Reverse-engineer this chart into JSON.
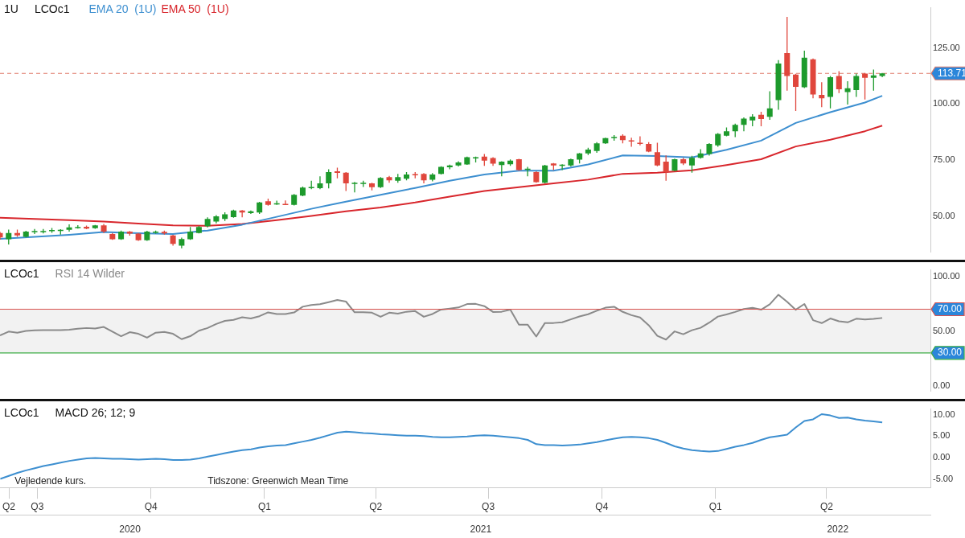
{
  "chart_data": [
    {
      "type": "candlestick",
      "title": "1U",
      "subtitle": "LCOc1",
      "legend": "top",
      "x": [
        "2020-06-01",
        "2020-06-08",
        "2020-06-15",
        "2020-06-22",
        "2020-06-29",
        "2020-07-06",
        "2020-07-13",
        "2020-07-20",
        "2020-07-27",
        "2020-08-03",
        "2020-08-10",
        "2020-08-17",
        "2020-08-24",
        "2020-08-31",
        "2020-09-07",
        "2020-09-14",
        "2020-09-21",
        "2020-09-28",
        "2020-10-05",
        "2020-10-12",
        "2020-10-19",
        "2020-10-26",
        "2020-11-02",
        "2020-11-09",
        "2020-11-16",
        "2020-11-23",
        "2020-11-30",
        "2020-12-07",
        "2020-12-14",
        "2020-12-21",
        "2020-12-28",
        "2021-01-04",
        "2021-01-11",
        "2021-01-18",
        "2021-01-25",
        "2021-02-01",
        "2021-02-08",
        "2021-02-15",
        "2021-02-22",
        "2021-03-01",
        "2021-03-08",
        "2021-03-15",
        "2021-03-22",
        "2021-03-29",
        "2021-04-05",
        "2021-04-12",
        "2021-04-19",
        "2021-04-26",
        "2021-05-03",
        "2021-05-10",
        "2021-05-17",
        "2021-05-24",
        "2021-05-31",
        "2021-06-07",
        "2021-06-14",
        "2021-06-21",
        "2021-06-28",
        "2021-07-05",
        "2021-07-12",
        "2021-07-19",
        "2021-07-26",
        "2021-08-02",
        "2021-08-09",
        "2021-08-16",
        "2021-08-23",
        "2021-08-30",
        "2021-09-06",
        "2021-09-13",
        "2021-09-20",
        "2021-09-27",
        "2021-10-04",
        "2021-10-11",
        "2021-10-18",
        "2021-10-25",
        "2021-11-01",
        "2021-11-08",
        "2021-11-15",
        "2021-11-22",
        "2021-11-29",
        "2021-12-06",
        "2021-12-13",
        "2021-12-20",
        "2021-12-27",
        "2022-01-03",
        "2022-01-10",
        "2022-01-17",
        "2022-01-24",
        "2022-01-31",
        "2022-02-07",
        "2022-02-14",
        "2022-02-21",
        "2022-02-28",
        "2022-03-07",
        "2022-03-14",
        "2022-03-21",
        "2022-03-28",
        "2022-04-04",
        "2022-04-11",
        "2022-04-18",
        "2022-04-25",
        "2022-05-02",
        "2022-05-09",
        "2022-05-16"
      ],
      "ohlc": [
        [
          42.5,
          43,
          39.5,
          40.5
        ],
        [
          39.7,
          44,
          37.4,
          42.5
        ],
        [
          42.5,
          44,
          40.8,
          41.4
        ],
        [
          40.8,
          43.5,
          40.5,
          43.1
        ],
        [
          43,
          44.3,
          42,
          43.4
        ],
        [
          43.1,
          44.3,
          42.3,
          43.4
        ],
        [
          43.4,
          44.7,
          42.6,
          43.8
        ],
        [
          43.6,
          44.2,
          41.8,
          43.9
        ],
        [
          43.9,
          46.3,
          43.1,
          45
        ],
        [
          44.9,
          46,
          44.5,
          45.2
        ],
        [
          45.3,
          45.8,
          44.2,
          44.5
        ],
        [
          44.6,
          46.1,
          44.4,
          45.9
        ],
        [
          45.9,
          46.5,
          42.5,
          43.1
        ],
        [
          42,
          42.5,
          39.4,
          39.7
        ],
        [
          39.7,
          43.6,
          39.4,
          43.1
        ],
        [
          43.1,
          43.4,
          41.3,
          42.2
        ],
        [
          42.2,
          42.5,
          39,
          39.3
        ],
        [
          39.3,
          43.5,
          39,
          43.1
        ],
        [
          42.8,
          43.6,
          42.2,
          43.1
        ],
        [
          43,
          43.6,
          41.8,
          42.3
        ],
        [
          41.4,
          41.7,
          36.8,
          37.6
        ],
        [
          36.8,
          40.4,
          35.7,
          39.8
        ],
        [
          39.7,
          45.2,
          39.4,
          43.1
        ],
        [
          42.5,
          45.6,
          42.3,
          45.2
        ],
        [
          45.5,
          49.5,
          45,
          48.8
        ],
        [
          47.6,
          50.5,
          46.8,
          49.9
        ],
        [
          48.8,
          51.7,
          47.9,
          50.8
        ],
        [
          49.6,
          52.9,
          49.3,
          52.5
        ],
        [
          52.5,
          52.7,
          49.5,
          51.6
        ],
        [
          51.4,
          52.5,
          51,
          52.2
        ],
        [
          51.6,
          56.4,
          51,
          56.1
        ],
        [
          56.7,
          57.8,
          54.7,
          55
        ],
        [
          55.4,
          56.9,
          55,
          55.8
        ],
        [
          55.5,
          57,
          55,
          55.3
        ],
        [
          55,
          59.9,
          54.8,
          59.5
        ],
        [
          59.2,
          63.2,
          58.9,
          62.8
        ],
        [
          62.7,
          65.8,
          62,
          63
        ],
        [
          62.5,
          67.8,
          62,
          64.6
        ],
        [
          64.6,
          70.9,
          62.4,
          69.7
        ],
        [
          70,
          71.6,
          66.9,
          69.3
        ],
        [
          69.4,
          69.7,
          61.2,
          64.6
        ],
        [
          64.6,
          65.3,
          60.6,
          64.9
        ],
        [
          64.5,
          65.8,
          63,
          64.9
        ],
        [
          64.6,
          64.9,
          61.5,
          62.9
        ],
        [
          62.9,
          67.4,
          62.6,
          67.1
        ],
        [
          67.4,
          68,
          64.9,
          66
        ],
        [
          65.8,
          68.9,
          64.9,
          67.4
        ],
        [
          66.7,
          69.7,
          66,
          68.6
        ],
        [
          68.8,
          69.7,
          66.9,
          68.3
        ],
        [
          68.9,
          69.2,
          64.6,
          66
        ],
        [
          66.3,
          69.2,
          65.5,
          68.6
        ],
        [
          68.9,
          72.3,
          68.6,
          72
        ],
        [
          71.8,
          73,
          70.9,
          72.6
        ],
        [
          72.6,
          74.5,
          72.2,
          74
        ],
        [
          73.1,
          76.6,
          72.9,
          76.3
        ],
        [
          76,
          76.6,
          74,
          76.3
        ],
        [
          76.6,
          77.7,
          72.4,
          74.8
        ],
        [
          75.9,
          76.3,
          72.4,
          73.4
        ],
        [
          72.8,
          74.5,
          67.8,
          74.3
        ],
        [
          73.2,
          75.3,
          72.4,
          74.8
        ],
        [
          75.4,
          75.6,
          70.3,
          70.6
        ],
        [
          70.9,
          72,
          67.8,
          71.2
        ],
        [
          69.7,
          70,
          64.9,
          65.2
        ],
        [
          64.9,
          72.9,
          64.6,
          72.6
        ],
        [
          73.5,
          73.7,
          70.6,
          72.6
        ],
        [
          72.6,
          73.2,
          70.6,
          73
        ],
        [
          72.6,
          75.7,
          72.2,
          75.4
        ],
        [
          75.2,
          78.2,
          73.5,
          78
        ],
        [
          78,
          80.5,
          77.3,
          79.7
        ],
        [
          79.1,
          83,
          78.3,
          82.5
        ],
        [
          82.5,
          85,
          82.2,
          84.8
        ],
        [
          84.9,
          86.2,
          83.7,
          85.4
        ],
        [
          85.9,
          86.5,
          82.5,
          83.9
        ],
        [
          83.8,
          85,
          81,
          83.3
        ],
        [
          82.8,
          85.6,
          81.6,
          82.3
        ],
        [
          82.2,
          83,
          78.5,
          78.8
        ],
        [
          78.5,
          82.8,
          72.3,
          72.6
        ],
        [
          74.3,
          77.1,
          65.8,
          69.7
        ],
        [
          70.3,
          75.7,
          70,
          75.4
        ],
        [
          75.4,
          76,
          72.8,
          73.5
        ],
        [
          72.6,
          76.9,
          69.4,
          76
        ],
        [
          76,
          79.9,
          75.7,
          78
        ],
        [
          77.7,
          82.6,
          77,
          82.2
        ],
        [
          81.6,
          87.1,
          81,
          86.7
        ],
        [
          85.9,
          89.6,
          85.6,
          87.9
        ],
        [
          87.9,
          91.3,
          85.3,
          90.7
        ],
        [
          90.7,
          94.1,
          87.9,
          93.5
        ],
        [
          92.7,
          95.5,
          90.1,
          94.4
        ],
        [
          95.2,
          96.6,
          90.1,
          93.3
        ],
        [
          94.3,
          105.7,
          93,
          98.1
        ],
        [
          101.8,
          119.6,
          97.5,
          118.1
        ],
        [
          122.8,
          138.9,
          106,
          112.5
        ],
        [
          113.2,
          113.5,
          96.9,
          107.7
        ],
        [
          107.5,
          123.8,
          107.2,
          120.7
        ],
        [
          120,
          120.3,
          102.6,
          104.3
        ],
        [
          104.1,
          109.8,
          98.6,
          102.6
        ],
        [
          103.2,
          112.5,
          98.1,
          112
        ],
        [
          112.5,
          114.7,
          104.9,
          106.6
        ],
        [
          105.4,
          110.2,
          99.8,
          107.1
        ],
        [
          106.3,
          113.6,
          103.2,
          112.5
        ],
        [
          113.6,
          113.9,
          102,
          111.7
        ],
        [
          111.7,
          115.4,
          106,
          112.8
        ],
        [
          112.5,
          113.9,
          112,
          113.7
        ]
      ],
      "colors": [
        "#e0463c",
        "#1d9a2c",
        "#e0463c",
        "#1d9a2c",
        "#1d9a2c",
        "#1d9a2c",
        "#1d9a2c",
        "#1d9a2c",
        "#1d9a2c",
        "#1d9a2c",
        "#e0463c",
        "#1d9a2c",
        "#e0463c",
        "#e0463c",
        "#1d9a2c",
        "#e0463c",
        "#e0463c",
        "#1d9a2c",
        "#1d9a2c",
        "#e0463c",
        "#e0463c",
        "#1d9a2c",
        "#1d9a2c",
        "#1d9a2c",
        "#1d9a2c",
        "#1d9a2c",
        "#1d9a2c",
        "#1d9a2c",
        "#e0463c",
        "#1d9a2c",
        "#1d9a2c",
        "#e0463c",
        "#1d9a2c",
        "#e0463c",
        "#1d9a2c",
        "#1d9a2c",
        "#1d9a2c",
        "#1d9a2c",
        "#1d9a2c",
        "#e0463c",
        "#e0463c",
        "#1d9a2c",
        "#1d9a2c",
        "#e0463c",
        "#1d9a2c",
        "#e0463c",
        "#1d9a2c",
        "#1d9a2c",
        "#e0463c",
        "#e0463c",
        "#1d9a2c",
        "#1d9a2c",
        "#1d9a2c",
        "#1d9a2c",
        "#1d9a2c",
        "#1d9a2c",
        "#e0463c",
        "#e0463c",
        "#1d9a2c",
        "#1d9a2c",
        "#e0463c",
        "#1d9a2c",
        "#e0463c",
        "#1d9a2c",
        "#e0463c",
        "#1d9a2c",
        "#1d9a2c",
        "#1d9a2c",
        "#1d9a2c",
        "#1d9a2c",
        "#1d9a2c",
        "#1d9a2c",
        "#e0463c",
        "#e0463c",
        "#e0463c",
        "#e0463c",
        "#e0463c",
        "#e0463c",
        "#1d9a2c",
        "#e0463c",
        "#1d9a2c",
        "#1d9a2c",
        "#1d9a2c",
        "#1d9a2c",
        "#1d9a2c",
        "#1d9a2c",
        "#1d9a2c",
        "#1d9a2c",
        "#e0463c",
        "#1d9a2c",
        "#1d9a2c",
        "#e0463c",
        "#e0463c",
        "#1d9a2c",
        "#e0463c",
        "#e0463c",
        "#1d9a2c",
        "#e0463c",
        "#1d9a2c",
        "#1d9a2c",
        "#e0463c",
        "#1d9a2c",
        "#1d9a2c"
      ],
      "series": [
        {
          "name": "EMA 20  (1U)",
          "type": "line",
          "color": "#3d8fd0",
          "x": [
            "2020-06-01",
            "2020-06-29",
            "2020-07-27",
            "2020-08-24",
            "2020-09-21",
            "2020-10-19",
            "2020-11-16",
            "2020-12-14",
            "2021-01-11",
            "2021-02-08",
            "2021-03-08",
            "2021-04-05",
            "2021-05-03",
            "2021-05-31",
            "2021-06-28",
            "2021-07-26",
            "2021-08-23",
            "2021-09-20",
            "2021-10-18",
            "2021-11-15",
            "2021-12-13",
            "2022-01-10",
            "2022-02-07",
            "2022-03-07",
            "2022-04-04",
            "2022-05-02",
            "2022-05-16"
          ],
          "values": [
            39.9,
            40.8,
            41.7,
            42.9,
            42.4,
            42.0,
            43.6,
            46.2,
            49.7,
            53.3,
            56.5,
            59.5,
            62.6,
            65.8,
            68.6,
            70.3,
            70.3,
            73.1,
            77.1,
            76.8,
            76.2,
            79.6,
            83.7,
            91.6,
            96.4,
            100.7,
            103.7
          ]
        },
        {
          "name": "EMA 50  (1U)",
          "type": "line",
          "color": "#d8262c",
          "x": [
            "2020-06-01",
            "2020-06-29",
            "2020-07-27",
            "2020-08-24",
            "2020-09-21",
            "2020-10-19",
            "2020-11-16",
            "2020-12-14",
            "2021-01-11",
            "2021-02-08",
            "2021-03-08",
            "2021-04-05",
            "2021-05-03",
            "2021-05-31",
            "2021-06-28",
            "2021-07-26",
            "2021-08-23",
            "2021-09-20",
            "2021-10-18",
            "2021-11-15",
            "2021-12-13",
            "2022-01-10",
            "2022-02-07",
            "2022-03-07",
            "2022-04-04",
            "2022-05-02",
            "2022-05-16"
          ],
          "values": [
            49.3,
            48.8,
            48.2,
            47.6,
            46.7,
            45.9,
            45.7,
            46.5,
            48.2,
            50.1,
            52.2,
            53.9,
            56.1,
            58.7,
            61.2,
            62.9,
            64.6,
            66.3,
            68.9,
            69.4,
            70.5,
            72.8,
            75.4,
            81.1,
            84.1,
            87.9,
            90.4
          ]
        }
      ],
      "ref_lines": [
        {
          "axis": "y",
          "value": 113.71,
          "label": "113.71",
          "color": "#e07a6a",
          "line_style": "dashed"
        }
      ],
      "xlim": [
        "2020-06-01",
        "2022-06-24"
      ],
      "ylim": [
        34,
        143
      ],
      "yticks": [
        {
          "value": 50,
          "label": "50.00"
        },
        {
          "value": 75,
          "label": "75.00"
        },
        {
          "value": 100,
          "label": "100.00"
        },
        {
          "value": 125,
          "label": "125.00"
        }
      ],
      "tick_labels": "y"
    },
    {
      "type": "line",
      "title": "LCOc1",
      "subtitle": "RSI 14 Wilder",
      "color": "#8a8a8a",
      "x": [
        "2020-06-01",
        "2020-06-08",
        "2020-06-15",
        "2020-06-22",
        "2020-06-29",
        "2020-07-06",
        "2020-07-13",
        "2020-07-20",
        "2020-07-27",
        "2020-08-03",
        "2020-08-10",
        "2020-08-17",
        "2020-08-24",
        "2020-08-31",
        "2020-09-07",
        "2020-09-14",
        "2020-09-21",
        "2020-09-28",
        "2020-10-05",
        "2020-10-12",
        "2020-10-19",
        "2020-10-26",
        "2020-11-02",
        "2020-11-09",
        "2020-11-16",
        "2020-11-23",
        "2020-11-30",
        "2020-12-07",
        "2020-12-14",
        "2020-12-21",
        "2020-12-28",
        "2021-01-04",
        "2021-01-11",
        "2021-01-18",
        "2021-01-25",
        "2021-02-01",
        "2021-02-08",
        "2021-02-15",
        "2021-02-22",
        "2021-03-01",
        "2021-03-08",
        "2021-03-15",
        "2021-03-22",
        "2021-03-29",
        "2021-04-05",
        "2021-04-12",
        "2021-04-19",
        "2021-04-26",
        "2021-05-03",
        "2021-05-10",
        "2021-05-17",
        "2021-05-24",
        "2021-05-31",
        "2021-06-07",
        "2021-06-14",
        "2021-06-21",
        "2021-06-28",
        "2021-07-05",
        "2021-07-12",
        "2021-07-19",
        "2021-07-26",
        "2021-08-02",
        "2021-08-09",
        "2021-08-16",
        "2021-08-23",
        "2021-08-30",
        "2021-09-06",
        "2021-09-13",
        "2021-09-20",
        "2021-09-27",
        "2021-10-04",
        "2021-10-11",
        "2021-10-18",
        "2021-10-25",
        "2021-11-01",
        "2021-11-08",
        "2021-11-15",
        "2021-11-22",
        "2021-11-29",
        "2021-12-06",
        "2021-12-13",
        "2021-12-20",
        "2021-12-27",
        "2022-01-03",
        "2022-01-10",
        "2022-01-17",
        "2022-01-24",
        "2022-01-31",
        "2022-02-07",
        "2022-02-14",
        "2022-02-21",
        "2022-02-28",
        "2022-03-07",
        "2022-03-14",
        "2022-03-21",
        "2022-03-28",
        "2022-04-04",
        "2022-04-11",
        "2022-04-18",
        "2022-04-25",
        "2022-05-02",
        "2022-05-09",
        "2022-05-16"
      ],
      "values": [
        46.1,
        49.5,
        48.5,
        50.2,
        50.7,
        50.8,
        50.8,
        50.8,
        51.2,
        52.2,
        52.8,
        52.3,
        53.8,
        49.5,
        45.3,
        49,
        47.5,
        44,
        48.5,
        49.2,
        47.5,
        42.6,
        45.3,
        50.3,
        52.8,
        56.5,
        59.3,
        60.3,
        62.6,
        61.5,
        63.6,
        67.1,
        65.6,
        65.6,
        67,
        72.3,
        73.8,
        74.6,
        76.5,
        78.5,
        77,
        67.2,
        67.2,
        66.8,
        63.1,
        66.8,
        66,
        67.7,
        68.3,
        63.1,
        65.6,
        69.7,
        70.6,
        71.6,
        74.7,
        74.9,
        72.8,
        67.5,
        67.7,
        69.6,
        55.9,
        55.9,
        45,
        57.4,
        57.4,
        58,
        60.7,
        63.4,
        65.4,
        68.6,
        71.4,
        72.3,
        67.6,
        64.6,
        62.4,
        55.3,
        45.6,
        42.2,
        49.7,
        47.1,
        50.8,
        53,
        57.7,
        63.3,
        65.2,
        67.5,
        70.2,
        71.3,
        69.6,
        74.5,
        83.3,
        76.8,
        69.5,
        74.8,
        60,
        57.3,
        61.5,
        59,
        58,
        61.3,
        60.7,
        61.2,
        62
      ],
      "ref_lines": [
        {
          "axis": "y",
          "value": 70,
          "label": "70.00",
          "color": "#d9534f"
        },
        {
          "axis": "y",
          "value": 30,
          "label": "30.00",
          "color": "#3cab45"
        }
      ],
      "bands": [
        {
          "axis": "y",
          "from": 30,
          "to": 70,
          "color": "#f2f2f2"
        }
      ],
      "xlim": [
        "2020-06-01",
        "2022-06-24"
      ],
      "ylim": [
        -5,
        106
      ],
      "yticks": [
        {
          "value": 0,
          "label": "0.00"
        },
        {
          "value": 50,
          "label": "50.00"
        },
        {
          "value": 100,
          "label": "100.00"
        }
      ],
      "tick_labels": "y"
    },
    {
      "type": "line",
      "title": "LCOc1",
      "subtitle": "MACD 26; 12; 9",
      "color": "#3d8fd0",
      "x": [
        "2020-06-01",
        "2020-06-08",
        "2020-06-15",
        "2020-06-22",
        "2020-06-29",
        "2020-07-06",
        "2020-07-13",
        "2020-07-20",
        "2020-07-27",
        "2020-08-03",
        "2020-08-10",
        "2020-08-17",
        "2020-08-24",
        "2020-08-31",
        "2020-09-07",
        "2020-09-14",
        "2020-09-21",
        "2020-09-28",
        "2020-10-05",
        "2020-10-12",
        "2020-10-19",
        "2020-10-26",
        "2020-11-02",
        "2020-11-09",
        "2020-11-16",
        "2020-11-23",
        "2020-11-30",
        "2020-12-07",
        "2020-12-14",
        "2020-12-21",
        "2020-12-28",
        "2021-01-04",
        "2021-01-11",
        "2021-01-18",
        "2021-01-25",
        "2021-02-01",
        "2021-02-08",
        "2021-02-15",
        "2021-02-22",
        "2021-03-01",
        "2021-03-08",
        "2021-03-15",
        "2021-03-22",
        "2021-03-29",
        "2021-04-05",
        "2021-04-12",
        "2021-04-19",
        "2021-04-26",
        "2021-05-03",
        "2021-05-10",
        "2021-05-17",
        "2021-05-24",
        "2021-05-31",
        "2021-06-07",
        "2021-06-14",
        "2021-06-21",
        "2021-06-28",
        "2021-07-05",
        "2021-07-12",
        "2021-07-19",
        "2021-07-26",
        "2021-08-02",
        "2021-08-09",
        "2021-08-16",
        "2021-08-23",
        "2021-08-30",
        "2021-09-06",
        "2021-09-13",
        "2021-09-20",
        "2021-09-27",
        "2021-10-04",
        "2021-10-11",
        "2021-10-18",
        "2021-10-25",
        "2021-11-01",
        "2021-11-08",
        "2021-11-15",
        "2021-11-22",
        "2021-11-29",
        "2021-12-06",
        "2021-12-13",
        "2021-12-20",
        "2021-12-27",
        "2022-01-03",
        "2022-01-10",
        "2022-01-17",
        "2022-01-24",
        "2022-01-31",
        "2022-02-07",
        "2022-02-14",
        "2022-02-21",
        "2022-02-28",
        "2022-03-07",
        "2022-03-14",
        "2022-03-21",
        "2022-03-28",
        "2022-04-04",
        "2022-04-11",
        "2022-04-18",
        "2022-04-25",
        "2022-05-02",
        "2022-05-09",
        "2022-05-16"
      ],
      "values": [
        -5.0,
        -4.3,
        -3.6,
        -3.0,
        -2.5,
        -2.0,
        -1.6,
        -1.2,
        -0.8,
        -0.5,
        -0.2,
        -0.1,
        -0.2,
        -0.3,
        -0.3,
        -0.4,
        -0.5,
        -0.4,
        -0.3,
        -0.4,
        -0.6,
        -0.6,
        -0.5,
        -0.2,
        0.2,
        0.6,
        1.0,
        1.4,
        1.7,
        1.9,
        2.3,
        2.6,
        2.8,
        2.9,
        3.3,
        3.7,
        4.1,
        4.6,
        5.2,
        5.8,
        6.0,
        5.9,
        5.7,
        5.6,
        5.4,
        5.3,
        5.2,
        5.1,
        5.1,
        5.0,
        4.8,
        4.7,
        4.7,
        4.8,
        4.9,
        5.1,
        5.2,
        5.1,
        4.9,
        4.7,
        4.5,
        4.1,
        3.1,
        2.9,
        2.9,
        2.8,
        2.9,
        3.0,
        3.3,
        3.6,
        4.0,
        4.4,
        4.7,
        4.8,
        4.7,
        4.5,
        4.1,
        3.4,
        2.6,
        2.1,
        1.7,
        1.5,
        1.4,
        1.5,
        2.0,
        2.5,
        2.9,
        3.4,
        4.1,
        4.7,
        5.0,
        5.3,
        7.0,
        8.5,
        8.9,
        10.1,
        9.8,
        9.2,
        9.3,
        8.9,
        8.6,
        8.4,
        8.2
      ],
      "annotations": [
        "Vejledende kurs.",
        "Tidszone: Greenwich Mean Time"
      ],
      "xlim": [
        "2020-06-01",
        "2022-06-24"
      ],
      "ylim": [
        -7,
        11.3
      ],
      "yticks": [
        {
          "value": -5,
          "label": "-5.00"
        },
        {
          "value": 0,
          "label": "0.00"
        },
        {
          "value": 5,
          "label": "5.00"
        },
        {
          "value": 10,
          "label": "10.00"
        }
      ],
      "xticks": [
        {
          "value": "2020-06-08",
          "label": "Q2"
        },
        {
          "value": "2020-07-01",
          "label": "Q3"
        },
        {
          "value": "2020-10-01",
          "label": "Q4"
        },
        {
          "value": "2021-01-01",
          "label": "Q1"
        },
        {
          "value": "2021-04-01",
          "label": "Q2"
        },
        {
          "value": "2021-07-01",
          "label": "Q3"
        },
        {
          "value": "2021-10-01",
          "label": "Q4"
        },
        {
          "value": "2022-01-01",
          "label": "Q1"
        },
        {
          "value": "2022-04-01",
          "label": "Q2"
        }
      ],
      "x2lim": [
        "2020-06-01",
        "2022-06-24"
      ],
      "x2ticks": [
        {
          "value": "2020-09-14",
          "label": "2020"
        },
        {
          "value": "2021-06-25",
          "label": "2021"
        },
        {
          "value": "2022-04-10",
          "label": "2022"
        }
      ]
    }
  ]
}
